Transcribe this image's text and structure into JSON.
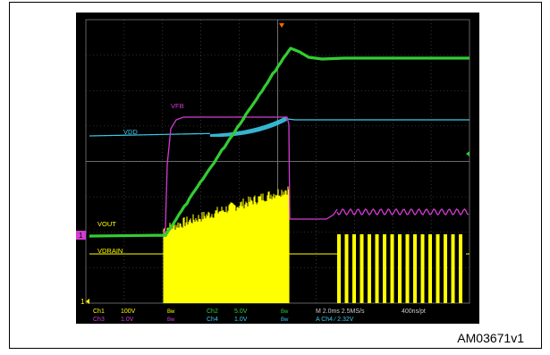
{
  "figure_ref": "AM03671v1",
  "channels": {
    "vfb": "VFB",
    "vdd": "VDD",
    "vout": "VOUT",
    "vdrain": "VDRAIN"
  },
  "markers": {
    "ch_marker_left": "1",
    "ch_marker_bottom": "1"
  },
  "readout": {
    "ch1_label": "Ch1",
    "ch1_value": "100V",
    "ch1_bw": "Bw",
    "ch2_label": "Ch2",
    "ch2_value": "5.0V",
    "ch2_bw": "Bw",
    "ch3_label": "Ch3",
    "ch3_value": "1.0V",
    "ch3_bw": "Bw",
    "ch4_label": "Ch4",
    "ch4_value": "1.0V",
    "ch4_bw": "Bw",
    "timebase": "M 2.0ms 2.5MS/s",
    "record": "400ns/pt",
    "trigger": "A Ch4 ∕ 2.32V"
  },
  "colors": {
    "background": "#000000",
    "grid": "#5a5a5a",
    "ch1_vdrain": "#ffff00",
    "ch2_vout": "#33cc33",
    "ch3_vfb": "#d23cd2",
    "ch4_vdd": "#3cc8e6",
    "trigger_marker": "#ff6600"
  }
}
